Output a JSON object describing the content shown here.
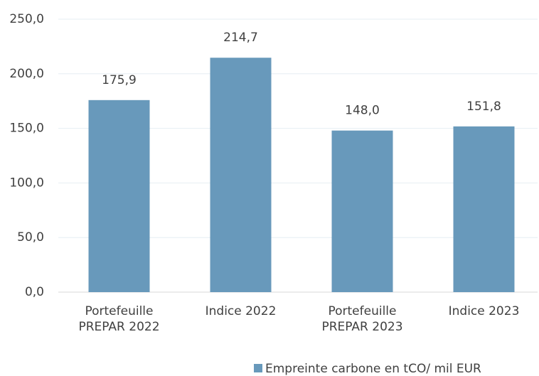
{
  "chart_data": {
    "type": "bar",
    "categories": [
      "Portefeuille PREPAR 2022",
      "Indice 2022",
      "Portefeuille PREPAR 2023",
      "Indice 2023"
    ],
    "series": [
      {
        "name": "Empreinte carbone en tCO/ mil EUR",
        "color": "#6899bb",
        "values": [
          175.9,
          214.7,
          148.0,
          151.8
        ],
        "value_labels": [
          "175,9",
          "214,7",
          "148,0",
          "151,8"
        ]
      }
    ],
    "ylim": [
      0,
      250
    ],
    "yticks": [
      {
        "value": 0,
        "label": "0,0"
      },
      {
        "value": 50,
        "label": "50,0"
      },
      {
        "value": 100,
        "label": "100,0"
      },
      {
        "value": 150,
        "label": "150,0"
      },
      {
        "value": 200,
        "label": "200,0"
      },
      {
        "value": 250,
        "label": "250,0"
      }
    ],
    "grid": true,
    "legend": "bottom"
  }
}
